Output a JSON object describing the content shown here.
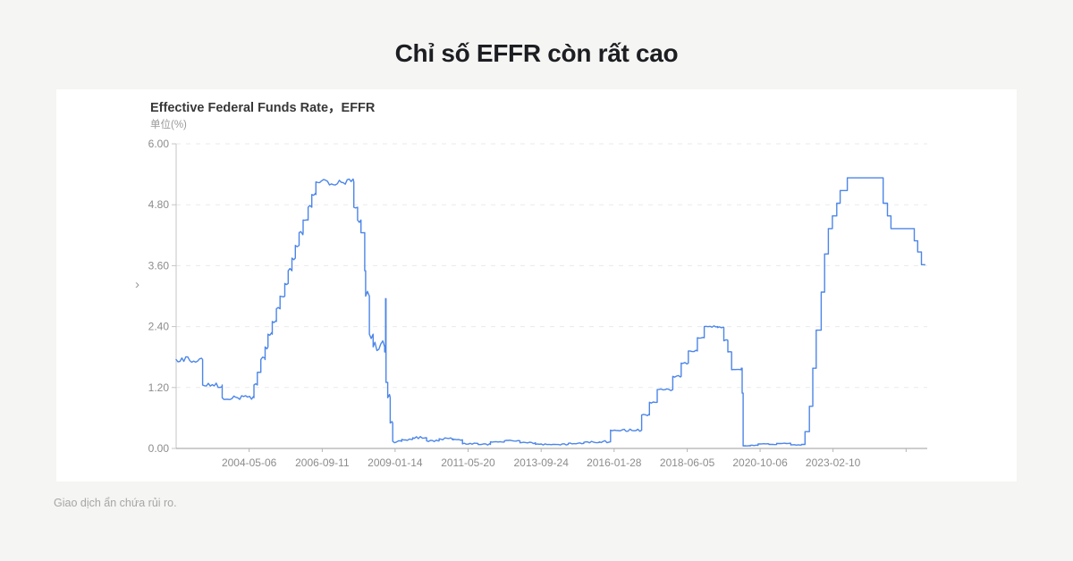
{
  "page": {
    "title": "Chỉ số EFFR còn rất cao",
    "disclaimer": "Giao dịch ẩn chứa rủi ro.",
    "background_color": "#f5f5f3",
    "card_color": "#ffffff"
  },
  "icons": {
    "chevron_right": "›"
  },
  "chart_data": {
    "type": "line",
    "title": "Effective Federal Funds Rate，EFFR",
    "unit_label": "单位(%)",
    "ylabel": "",
    "xlabel": "",
    "ylim": [
      0,
      6
    ],
    "yticks": [
      {
        "value": 6.0,
        "label": "6.00"
      },
      {
        "value": 4.8,
        "label": "4.80"
      },
      {
        "value": 3.6,
        "label": "3.60"
      },
      {
        "value": 2.4,
        "label": "2.40"
      },
      {
        "value": 1.2,
        "label": "1.20"
      },
      {
        "value": 0.0,
        "label": "0.00"
      }
    ],
    "xticks": [
      {
        "year": 2004.346,
        "label": "2004-05-06"
      },
      {
        "year": 2006.695,
        "label": "2006-09-11"
      },
      {
        "year": 2009.036,
        "label": "2009-01-14"
      },
      {
        "year": 2011.381,
        "label": "2011-05-20"
      },
      {
        "year": 2013.73,
        "label": "2013-09-24"
      },
      {
        "year": 2016.074,
        "label": "2016-01-28"
      },
      {
        "year": 2018.425,
        "label": "2018-06-05"
      },
      {
        "year": 2020.766,
        "label": "2020-10-06"
      },
      {
        "year": 2023.11,
        "label": "2023-02-10"
      },
      {
        "year": 2025.458,
        "label": ""
      }
    ],
    "x_range_years": [
      2002.0,
      2026.3
    ],
    "grid": "dashed-horizontal",
    "legend": "none",
    "line_color": "#4c86e8",
    "axis_color": "#9b9b9b",
    "grid_color": "#eaeaea",
    "tick_label_color": "#8c8c8c",
    "series": [
      {
        "name": "EFFR",
        "note": "points are [decimalYear, percent, jitterAmplitudeOfFollowingSegment]",
        "points": [
          [
            2002.0,
            1.75,
            0.06
          ],
          [
            2002.85,
            1.25,
            0.05
          ],
          [
            2003.48,
            1.0,
            0.04
          ],
          [
            2004.5,
            1.25,
            0.05
          ],
          [
            2004.61,
            1.5,
            0.05
          ],
          [
            2004.72,
            1.75,
            0.05
          ],
          [
            2004.86,
            2.0,
            0.05
          ],
          [
            2004.95,
            2.25,
            0.05
          ],
          [
            2005.09,
            2.5,
            0.05
          ],
          [
            2005.22,
            2.75,
            0.05
          ],
          [
            2005.34,
            3.0,
            0.05
          ],
          [
            2005.49,
            3.25,
            0.05
          ],
          [
            2005.6,
            3.5,
            0.05
          ],
          [
            2005.72,
            3.75,
            0.05
          ],
          [
            2005.83,
            4.0,
            0.05
          ],
          [
            2005.95,
            4.25,
            0.05
          ],
          [
            2006.08,
            4.5,
            0.05
          ],
          [
            2006.24,
            4.75,
            0.05
          ],
          [
            2006.36,
            5.0,
            0.05
          ],
          [
            2006.49,
            5.25,
            0.06
          ],
          [
            2007.71,
            4.75,
            0.09
          ],
          [
            2007.83,
            4.5,
            0.09
          ],
          [
            2007.94,
            4.25,
            0.1
          ],
          [
            2008.06,
            3.5,
            0.12
          ],
          [
            2008.09,
            3.0,
            0.12
          ],
          [
            2008.21,
            2.25,
            0.12
          ],
          [
            2008.33,
            2.0,
            0.14
          ],
          [
            2008.7,
            1.9,
            0.1
          ],
          [
            2008.73,
            2.95,
            0
          ],
          [
            2008.745,
            1.3,
            0.15
          ],
          [
            2008.8,
            1.0,
            0.18
          ],
          [
            2008.88,
            0.5,
            0.1
          ],
          [
            2008.96,
            0.14,
            0.03
          ],
          [
            2009.25,
            0.18,
            0.025
          ],
          [
            2009.6,
            0.21,
            0.025
          ],
          [
            2010.05,
            0.15,
            0.02
          ],
          [
            2010.45,
            0.19,
            0.02
          ],
          [
            2010.9,
            0.17,
            0.02
          ],
          [
            2011.2,
            0.09,
            0.015
          ],
          [
            2011.7,
            0.08,
            0.015
          ],
          [
            2012.1,
            0.13,
            0.015
          ],
          [
            2012.55,
            0.15,
            0.015
          ],
          [
            2013.05,
            0.11,
            0.015
          ],
          [
            2013.55,
            0.08,
            0.012
          ],
          [
            2014.1,
            0.08,
            0.012
          ],
          [
            2014.6,
            0.1,
            0.012
          ],
          [
            2015.1,
            0.12,
            0.02
          ],
          [
            2015.6,
            0.13,
            0.025
          ],
          [
            2015.96,
            0.36,
            0.025
          ],
          [
            2016.96,
            0.66,
            0.02
          ],
          [
            2017.21,
            0.91,
            0.02
          ],
          [
            2017.46,
            1.16,
            0.02
          ],
          [
            2017.96,
            1.42,
            0.02
          ],
          [
            2018.23,
            1.68,
            0.02
          ],
          [
            2018.46,
            1.92,
            0.02
          ],
          [
            2018.75,
            2.18,
            0.02
          ],
          [
            2018.97,
            2.4,
            0.015
          ],
          [
            2019.4,
            2.38,
            0.02
          ],
          [
            2019.6,
            2.12,
            0.02
          ],
          [
            2019.73,
            1.9,
            0.02
          ],
          [
            2019.85,
            1.55,
            0.01
          ],
          [
            2020.16,
            1.58,
            0
          ],
          [
            2020.19,
            1.09,
            0
          ],
          [
            2020.22,
            0.05,
            0.008
          ],
          [
            2020.45,
            0.06,
            0.006
          ],
          [
            2020.7,
            0.09,
            0.006
          ],
          [
            2021.05,
            0.08,
            0.006
          ],
          [
            2021.3,
            0.1,
            0.006
          ],
          [
            2021.75,
            0.07,
            0.006
          ],
          [
            2022.1,
            0.08,
            0
          ],
          [
            2022.21,
            0.33,
            0
          ],
          [
            2022.35,
            0.83,
            0
          ],
          [
            2022.46,
            1.58,
            0
          ],
          [
            2022.57,
            2.33,
            0
          ],
          [
            2022.73,
            3.08,
            0
          ],
          [
            2022.84,
            3.83,
            0
          ],
          [
            2022.96,
            4.33,
            0
          ],
          [
            2023.09,
            4.58,
            0
          ],
          [
            2023.23,
            4.83,
            0
          ],
          [
            2023.34,
            5.08,
            0
          ],
          [
            2023.57,
            5.33,
            0
          ],
          [
            2024.72,
            4.83,
            0
          ],
          [
            2024.86,
            4.58,
            0
          ],
          [
            2024.97,
            4.33,
            0
          ],
          [
            2025.72,
            4.09,
            0
          ],
          [
            2025.83,
            3.87,
            0
          ],
          [
            2025.95,
            3.62,
            0
          ],
          [
            2026.06,
            3.62,
            0
          ]
        ]
      }
    ]
  }
}
